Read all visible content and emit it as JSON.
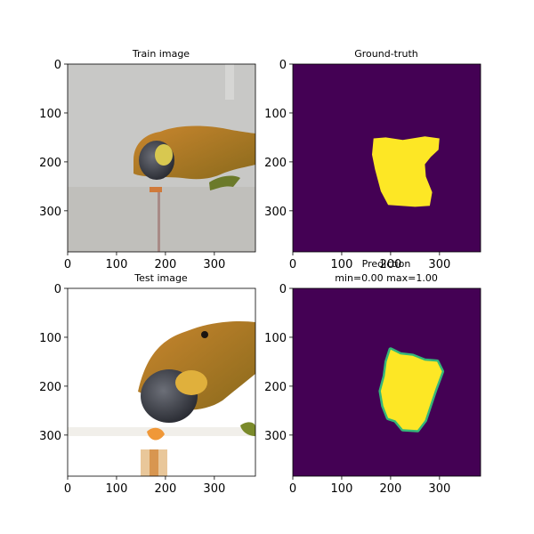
{
  "chart_data": [
    {
      "type": "image",
      "title": "Train image",
      "content": "photo of a lizard eating a snail on a light gray background",
      "xlim": [
        0,
        384
      ],
      "ylim": [
        384,
        0
      ],
      "xticks": [
        0,
        100,
        200,
        300
      ],
      "yticks": [
        0,
        100,
        200,
        300
      ]
    },
    {
      "type": "heatmap",
      "title": "Ground-truth",
      "colormap": "viridis",
      "xlim": [
        0,
        384
      ],
      "ylim": [
        384,
        0
      ],
      "xticks": [
        0,
        100,
        200,
        300
      ],
      "yticks": [
        0,
        100,
        200,
        300
      ],
      "mask_outline": [
        [
          165,
          152
        ],
        [
          190,
          150
        ],
        [
          225,
          155
        ],
        [
          270,
          148
        ],
        [
          300,
          152
        ],
        [
          298,
          175
        ],
        [
          282,
          190
        ],
        [
          270,
          205
        ],
        [
          272,
          230
        ],
        [
          285,
          262
        ],
        [
          280,
          290
        ],
        [
          250,
          292
        ],
        [
          195,
          288
        ],
        [
          180,
          260
        ],
        [
          168,
          215
        ],
        [
          162,
          185
        ]
      ]
    },
    {
      "type": "image",
      "title": "Test image",
      "content": "photo of a lizard biting a snail on a white background",
      "xlim": [
        0,
        384
      ],
      "ylim": [
        384,
        0
      ],
      "xticks": [
        0,
        100,
        200,
        300
      ],
      "yticks": [
        0,
        100,
        200,
        300
      ]
    },
    {
      "type": "heatmap",
      "title": "Prediction",
      "subtitle": "min=0.00 max=1.00",
      "colormap": "viridis",
      "vmin": 0.0,
      "vmax": 1.0,
      "xlim": [
        0,
        384
      ],
      "ylim": [
        384,
        0
      ],
      "xticks": [
        0,
        100,
        200,
        300
      ],
      "yticks": [
        0,
        100,
        200,
        300
      ],
      "mask_outline": [
        [
          200,
          125
        ],
        [
          220,
          135
        ],
        [
          245,
          138
        ],
        [
          270,
          148
        ],
        [
          295,
          150
        ],
        [
          305,
          170
        ],
        [
          292,
          205
        ],
        [
          280,
          240
        ],
        [
          270,
          270
        ],
        [
          255,
          290
        ],
        [
          225,
          288
        ],
        [
          210,
          270
        ],
        [
          195,
          265
        ],
        [
          185,
          240
        ],
        [
          180,
          210
        ],
        [
          188,
          180
        ],
        [
          192,
          150
        ]
      ]
    }
  ],
  "colors": {
    "viridis_low": "#440154",
    "viridis_high": "#fde725",
    "viridis_mid": "#35b779"
  }
}
